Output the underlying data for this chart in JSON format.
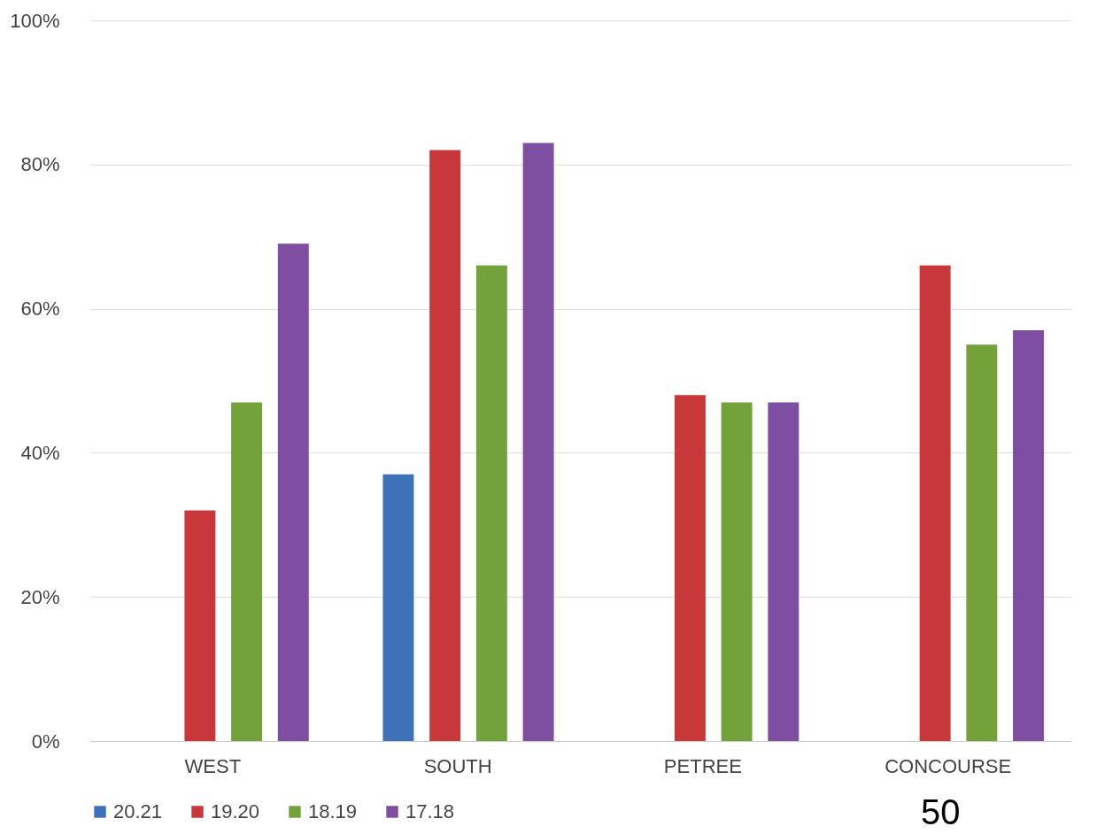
{
  "chart_data": {
    "type": "bar",
    "categories": [
      "WEST",
      "SOUTH",
      "PETREE",
      "CONCOURSE"
    ],
    "series": [
      {
        "name": "20.21",
        "color": "#3d72b8",
        "values": [
          null,
          37,
          null,
          null
        ]
      },
      {
        "name": "19.20",
        "color": "#c8383a",
        "values": [
          32,
          82,
          48,
          66
        ]
      },
      {
        "name": "18.19",
        "color": "#74a23a",
        "values": [
          47,
          66,
          47,
          55
        ]
      },
      {
        "name": "17.18",
        "color": "#7e4ea3",
        "values": [
          69,
          83,
          47,
          57
        ]
      }
    ],
    "ylim": [
      0,
      100
    ],
    "yticks": [
      {
        "value": 0,
        "label": "0%"
      },
      {
        "value": 20,
        "label": "20%"
      },
      {
        "value": 40,
        "label": "40%"
      },
      {
        "value": 60,
        "label": "60%"
      },
      {
        "value": 80,
        "label": "80%"
      },
      {
        "value": 100,
        "label": "100%"
      }
    ],
    "grid": "y",
    "legend": "bottom",
    "annotations": [
      "50"
    ]
  }
}
